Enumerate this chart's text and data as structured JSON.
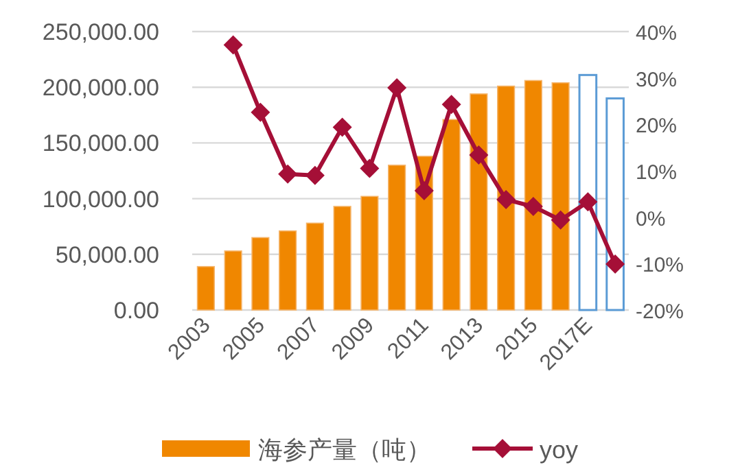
{
  "chart_data": {
    "type": "bar",
    "categories": [
      "2003",
      null,
      "2005",
      null,
      "2007",
      null,
      "2009",
      null,
      "2011",
      null,
      "2013",
      null,
      "2015",
      null,
      "2017E",
      null
    ],
    "series": [
      {
        "name": "海参产量（吨）",
        "color": "#f08700",
        "colors": [
          "#f08700",
          "#f08700",
          "#f08700",
          "#f08700",
          "#f08700",
          "#f08700",
          "#f08700",
          "#f08700",
          "#f08700",
          "#f08700",
          "#f08700",
          "#f08700",
          "#f08700",
          "#f08700",
          "#5b9bd5",
          "#5b9bd5"
        ],
        "values": [
          39000,
          53000,
          65000,
          71000,
          78000,
          93000,
          102000,
          130000,
          138000,
          171000,
          194000,
          201000,
          206000,
          204000,
          211000,
          190000
        ]
      },
      {
        "name": "yoy",
        "type": "line",
        "axis": "y2",
        "color": "#a50f37",
        "values": [
          null,
          37.1,
          22.6,
          9.3,
          9.0,
          19.4,
          10.5,
          27.9,
          5.7,
          24.3,
          13.4,
          3.8,
          2.3,
          -0.6,
          3.3,
          -10.1
        ]
      }
    ],
    "ylim": [
      0,
      250000
    ],
    "yticks": [
      {
        "value": 0,
        "label": "0.00"
      },
      {
        "value": 50000,
        "label": "50,000.00"
      },
      {
        "value": 100000,
        "label": "100,000.00"
      },
      {
        "value": 150000,
        "label": "150,000.00"
      },
      {
        "value": 200000,
        "label": "200,000.00"
      },
      {
        "value": 250000,
        "label": "250,000.00"
      }
    ],
    "y2lim": [
      -20,
      40
    ],
    "y2ticks": [
      {
        "value": -20,
        "label": "-20%"
      },
      {
        "value": -10,
        "label": "-10%"
      },
      {
        "value": 0,
        "label": "0%"
      },
      {
        "value": 10,
        "label": "10%"
      },
      {
        "value": 20,
        "label": "20%"
      },
      {
        "value": 30,
        "label": "30%"
      },
      {
        "value": 40,
        "label": "40%"
      }
    ],
    "grid": "y",
    "legend": "bottom",
    "marker": "diamond",
    "line_style": "solid"
  }
}
